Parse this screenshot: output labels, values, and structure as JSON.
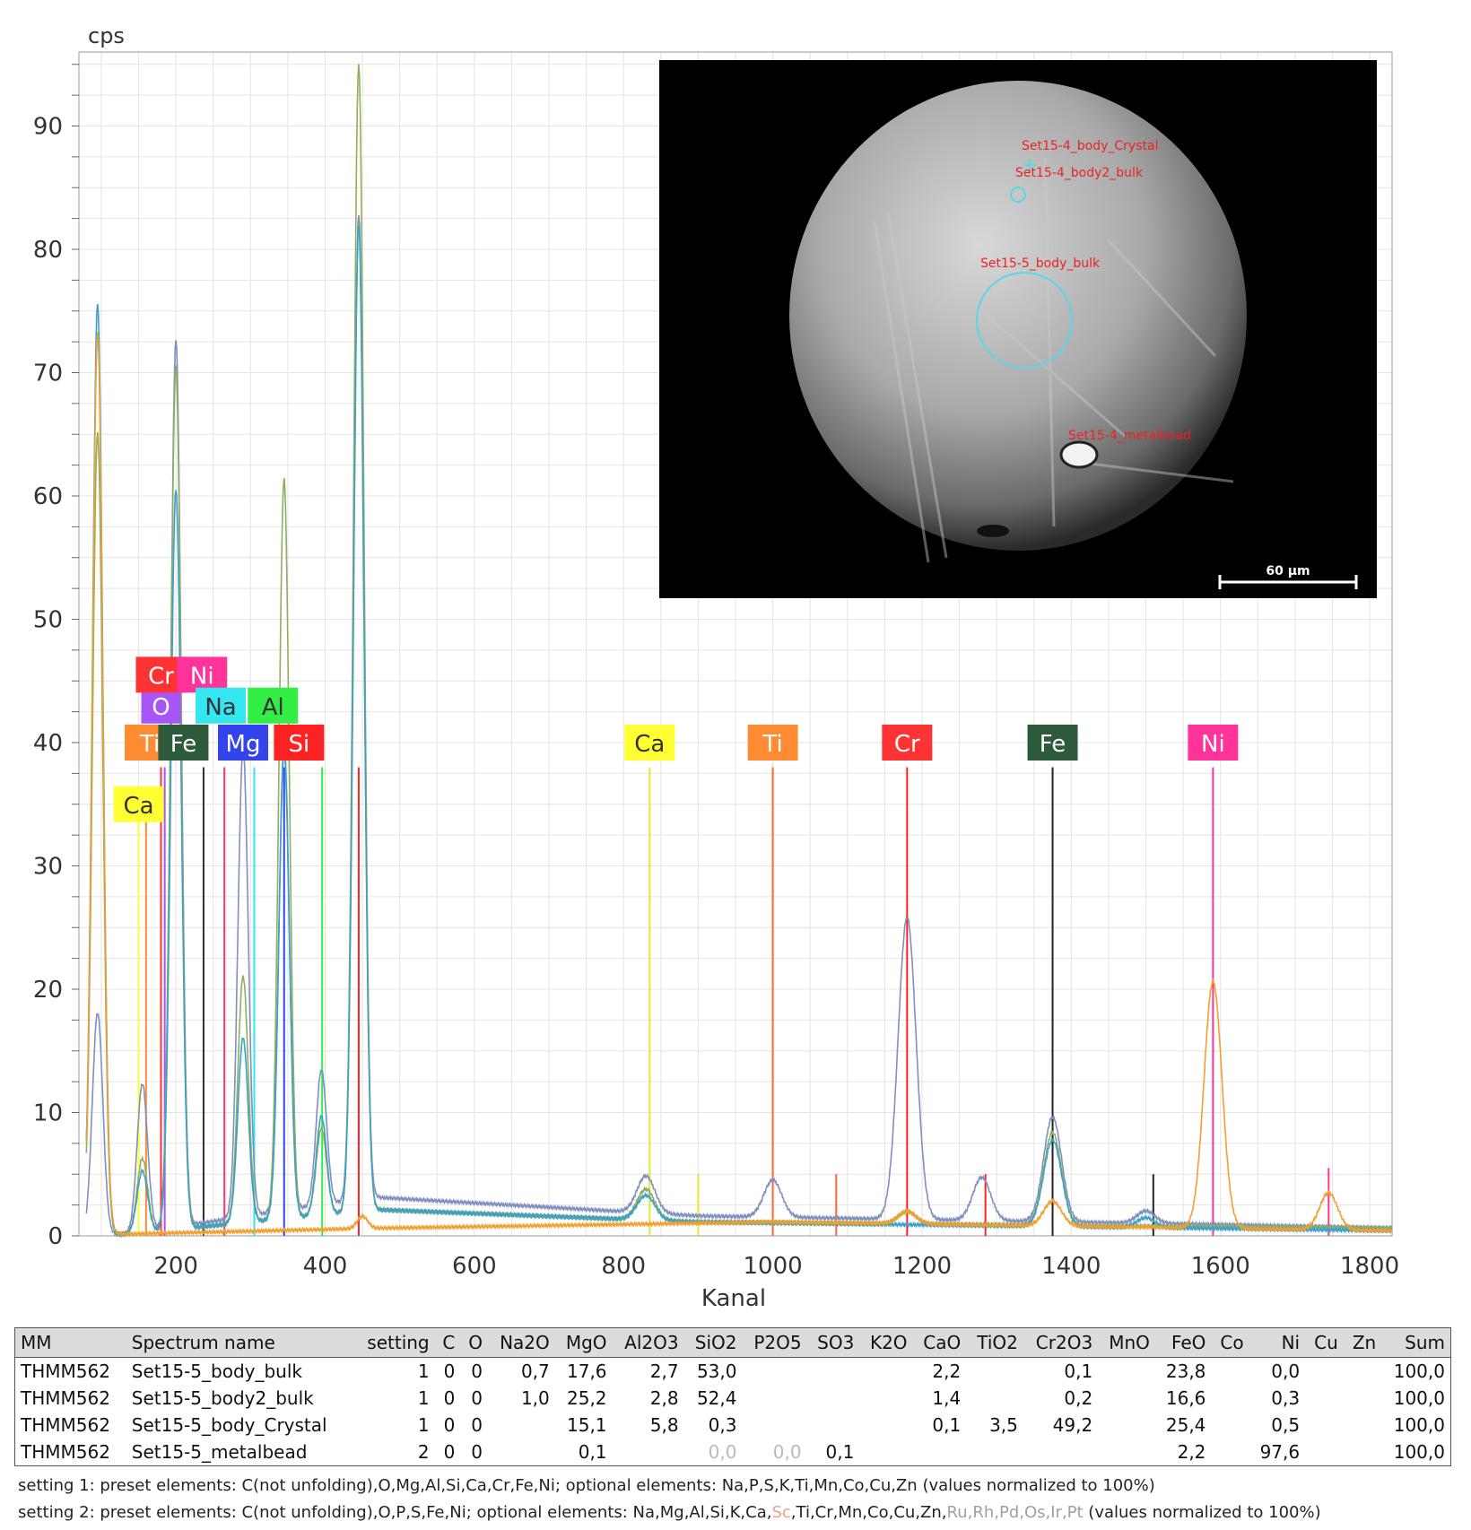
{
  "chart_data": {
    "type": "line",
    "ylabel": "cps",
    "xlabel": "Kanal",
    "xlim": [
      70,
      1830
    ],
    "ylim": [
      0,
      96
    ],
    "x_ticks": [
      200,
      400,
      600,
      800,
      1000,
      1200,
      1400,
      1600,
      1800
    ],
    "y_ticks": [
      0,
      10,
      20,
      30,
      40,
      50,
      60,
      70,
      80,
      90
    ],
    "grid": true,
    "series": [
      {
        "color": "#7f8fbf",
        "peaks": [
          [
            95,
            18
          ],
          [
            155,
            12
          ],
          [
            200,
            72
          ],
          [
            290,
            38
          ],
          [
            345,
            38
          ],
          [
            395,
            11
          ],
          [
            445,
            80
          ],
          [
            830,
            3
          ],
          [
            1000,
            3
          ],
          [
            1180,
            24.5
          ],
          [
            1280,
            3.5
          ],
          [
            1375,
            8.5
          ],
          [
            1500,
            1
          ]
        ],
        "baseline": [
          [
            130,
            0
          ],
          [
            470,
            3
          ],
          [
            900,
            1.5
          ],
          [
            1600,
            0.8
          ],
          [
            1830,
            0.5
          ]
        ]
      },
      {
        "color": "#8fae5f",
        "peaks": [
          [
            95,
            65
          ],
          [
            155,
            6
          ],
          [
            200,
            70
          ],
          [
            290,
            20
          ],
          [
            345,
            60
          ],
          [
            395,
            7
          ],
          [
            445,
            93
          ],
          [
            830,
            2.5
          ],
          [
            1180,
            1
          ],
          [
            1375,
            7.5
          ]
        ],
        "baseline": [
          [
            130,
            0
          ],
          [
            470,
            2
          ],
          [
            900,
            1
          ],
          [
            1830,
            0.5
          ]
        ]
      },
      {
        "color": "#3ca0c8",
        "peaks": [
          [
            95,
            75.5
          ],
          [
            155,
            5
          ],
          [
            200,
            60
          ],
          [
            290,
            15
          ],
          [
            345,
            38
          ],
          [
            395,
            8
          ],
          [
            445,
            80
          ],
          [
            830,
            2
          ],
          [
            1375,
            7
          ],
          [
            1500,
            0.8
          ]
        ],
        "baseline": [
          [
            130,
            0
          ],
          [
            470,
            2
          ],
          [
            900,
            1
          ],
          [
            1830,
            0.3
          ]
        ]
      },
      {
        "color": "#f0a030",
        "peaks": [
          [
            95,
            73
          ],
          [
            110,
            0.3
          ],
          [
            450,
            1
          ],
          [
            1180,
            1
          ],
          [
            1375,
            2
          ],
          [
            1590,
            20
          ],
          [
            1745,
            3
          ]
        ],
        "baseline": [
          [
            115,
            0
          ],
          [
            470,
            0.5
          ],
          [
            1000,
            1
          ],
          [
            1830,
            0.3
          ]
        ]
      }
    ],
    "element_markers": [
      {
        "label": "Ca",
        "x": 150,
        "y": 35,
        "color": "#ffff33"
      },
      {
        "label": "Ti",
        "x": 165,
        "y": 40,
        "color": "#ff8c33"
      },
      {
        "label": "O",
        "x": 180,
        "y": 43,
        "color": "#a855f7"
      },
      {
        "label": "Cr",
        "x": 180,
        "y": 45.5,
        "color": "#ff3333"
      },
      {
        "label": "Fe",
        "x": 210,
        "y": 40,
        "color": "#2d5a3a"
      },
      {
        "label": "Ni",
        "x": 235,
        "y": 45.5,
        "color": "#ff3399"
      },
      {
        "label": "Na",
        "x": 260,
        "y": 43,
        "color": "#33e6f0"
      },
      {
        "label": "Mg",
        "x": 290,
        "y": 40,
        "color": "#3344ee"
      },
      {
        "label": "Al",
        "x": 330,
        "y": 43,
        "color": "#33ee44"
      },
      {
        "label": "Si",
        "x": 365,
        "y": 40,
        "color": "#ff2222"
      },
      {
        "label": "Ca",
        "x": 835,
        "y": 40,
        "color": "#ffff33"
      },
      {
        "label": "Ti",
        "x": 1000,
        "y": 40,
        "color": "#ff8c33"
      },
      {
        "label": "Cr",
        "x": 1180,
        "y": 40,
        "color": "#ff3333"
      },
      {
        "label": "Fe",
        "x": 1375,
        "y": 40,
        "color": "#2d5a3a"
      },
      {
        "label": "Ni",
        "x": 1590,
        "y": 40,
        "color": "#ff3399"
      }
    ],
    "element_lines": [
      {
        "x": 150,
        "h": 35,
        "color": "#ffff33"
      },
      {
        "x": 160,
        "h": 35,
        "color": "#ff8c33"
      },
      {
        "x": 180,
        "h": 38,
        "color": "#ff3333"
      },
      {
        "x": 185,
        "h": 38,
        "color": "#a855f7"
      },
      {
        "x": 237,
        "h": 38,
        "color": "#2d2d2d"
      },
      {
        "x": 265,
        "h": 38,
        "color": "#ff3366"
      },
      {
        "x": 305,
        "h": 38,
        "color": "#33e6f0"
      },
      {
        "x": 345,
        "h": 38,
        "color": "#3344ee"
      },
      {
        "x": 396,
        "h": 38,
        "color": "#33ee44"
      },
      {
        "x": 445,
        "h": 38,
        "color": "#ff2222"
      },
      {
        "x": 835,
        "h": 38,
        "color": "#e6e633"
      },
      {
        "x": 900,
        "h": 5,
        "color": "#e6e633"
      },
      {
        "x": 1000,
        "h": 38,
        "color": "#ff6633"
      },
      {
        "x": 1085,
        "h": 5,
        "color": "#ff6633"
      },
      {
        "x": 1180,
        "h": 38,
        "color": "#ff2222"
      },
      {
        "x": 1285,
        "h": 5,
        "color": "#ff2222"
      },
      {
        "x": 1375,
        "h": 38,
        "color": "#222222"
      },
      {
        "x": 1510,
        "h": 5,
        "color": "#222222"
      },
      {
        "x": 1590,
        "h": 38,
        "color": "#ff3399"
      },
      {
        "x": 1745,
        "h": 5.5,
        "color": "#ff3399"
      }
    ]
  },
  "inset": {
    "scale_label": "60 µm",
    "labels": [
      "Set15-4_body_Crystal",
      "Set15-4_body2_bulk",
      "Set15-5_body_bulk",
      "Set15-4_metalbead"
    ]
  },
  "table": {
    "headers": [
      "MM",
      "Spectrum name",
      "setting",
      "C",
      "O",
      "Na2O",
      "MgO",
      "Al2O3",
      "SiO2",
      "P2O5",
      "SO3",
      "K2O",
      "CaO",
      "TiO2",
      "Cr2O3",
      "MnO",
      "FeO",
      "Co",
      "Ni",
      "Cu",
      "Zn",
      "Sum"
    ],
    "rows": [
      [
        "THMM562",
        "Set15-5_body_bulk",
        "1",
        "0",
        "0",
        "0,7",
        "17,6",
        "2,7",
        "53,0",
        "",
        "",
        "",
        "2,2",
        "",
        "0,1",
        "",
        "23,8",
        "",
        "0,0",
        "",
        "",
        "100,0"
      ],
      [
        "THMM562",
        "Set15-5_body2_bulk",
        "1",
        "0",
        "0",
        "1,0",
        "25,2",
        "2,8",
        "52,4",
        "",
        "",
        "",
        "1,4",
        "",
        "0,2",
        "",
        "16,6",
        "",
        "0,3",
        "",
        "",
        "100,0"
      ],
      [
        "THMM562",
        "Set15-5_body_Crystal",
        "1",
        "0",
        "0",
        "",
        "15,1",
        "5,8",
        "0,3",
        "",
        "",
        "",
        "0,1",
        "3,5",
        "49,2",
        "",
        "25,4",
        "",
        "0,5",
        "",
        "",
        "100,0"
      ],
      [
        "THMM562",
        "Set15-5_metalbead",
        "2",
        "0",
        "0",
        "",
        "0,1",
        "",
        "0,0",
        "0,0",
        "0,1",
        "",
        "",
        "",
        "",
        "",
        "2,2",
        "",
        "97,6",
        "",
        "",
        "100,0"
      ]
    ],
    "muted_cells": [
      [
        3,
        8
      ],
      [
        3,
        9
      ]
    ]
  },
  "notes": {
    "setting1": "setting 1: preset elements: C(not unfolding),O,Mg,Al,Si,Ca,Cr,Fe,Ni; optional elements: Na,P,S,K,Ti,Mn,Co,Cu,Zn (values normalized to 100%)",
    "setting2_a": "setting 2: preset elements: C(not unfolding),O,P,S,Fe,Ni; optional elements: Na,Mg,Al,Si,K,Ca,",
    "setting2_sc": "Sc",
    "setting2_b": ",Ti,Cr,Mn,Co,Cu,Zn,",
    "setting2_grey": "Ru,Rh,Pd,Os,Ir,Pt",
    "setting2_c": " (values normalized to 100%)"
  }
}
